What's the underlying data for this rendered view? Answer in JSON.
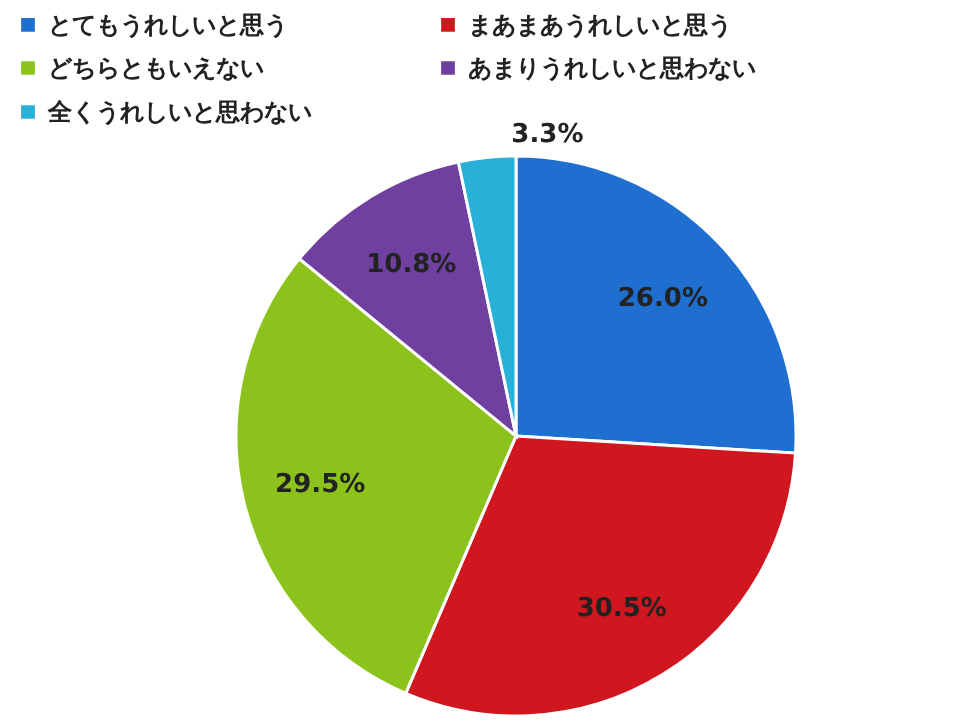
{
  "chart_data": {
    "type": "pie",
    "categories": [
      "とてもうれしいと思う",
      "まあまあうれしいと思う",
      "どちらともいえない",
      "あまりうれしいと思わない",
      "全くうれしいと思わない"
    ],
    "values": [
      26.0,
      30.5,
      29.5,
      10.8,
      3.3
    ],
    "value_labels": [
      "26.0%",
      "30.5%",
      "29.5%",
      "10.8%",
      "3.3%"
    ],
    "colors": [
      "#1f6fd0",
      "#d0161e",
      "#8cc21c",
      "#7040a0",
      "#29b0d8"
    ],
    "legend": "top"
  }
}
